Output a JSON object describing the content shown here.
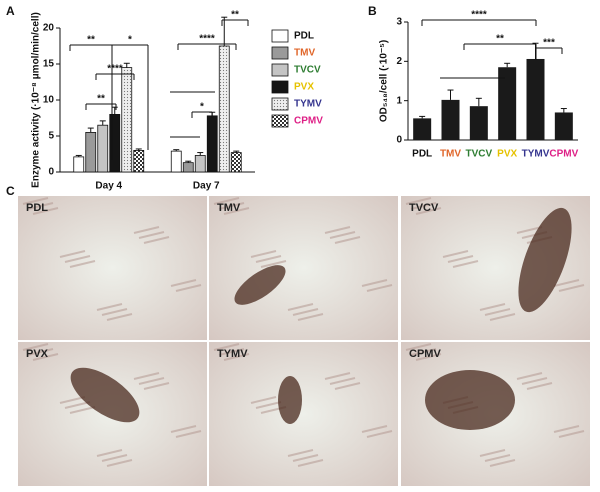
{
  "panel_labels": [
    "A",
    "B",
    "C"
  ],
  "chart_data": [
    {
      "type": "bar",
      "ylabel": "Enzyme activity (·10⁻⁸ μmol/min/cell)",
      "categories": [
        "Day 4",
        "Day 7"
      ],
      "ylim": [
        0,
        20
      ],
      "yticks": [
        0,
        5,
        10,
        15,
        20
      ],
      "series": [
        {
          "name": "PDL",
          "color": "#ffffff",
          "text_color": "#111111",
          "values": [
            2.1,
            2.9
          ],
          "errors": [
            0.2,
            0.2
          ]
        },
        {
          "name": "TMV",
          "color": "#9a9a9a",
          "text_color": "#e0662a",
          "values": [
            5.5,
            1.3
          ],
          "errors": [
            0.6,
            0.2
          ]
        },
        {
          "name": "TVCV",
          "color": "#c4c4c4",
          "text_color": "#2e7d32",
          "values": [
            6.5,
            2.3
          ],
          "errors": [
            0.6,
            0.4
          ]
        },
        {
          "name": "PVX",
          "color": "#151515",
          "text_color": "#e6c200",
          "values": [
            8.0,
            7.8
          ],
          "errors": [
            1.0,
            0.5
          ]
        },
        {
          "name": "TYMV",
          "color": "#e2e2e2",
          "text_color": "#35358f",
          "values": [
            14.5,
            17.5
          ],
          "errors": [
            0.6,
            4.0
          ]
        },
        {
          "name": "CPMV",
          "color": "#6a6a6a",
          "text_color": "#de1f86",
          "values": [
            3.0,
            2.7
          ],
          "errors": [
            0.2,
            0.2
          ]
        }
      ],
      "annotations": [
        "**",
        "*",
        "****",
        "**",
        "**",
        "****",
        "*"
      ]
    },
    {
      "type": "bar",
      "ylabel": "OD₅₄₈/cell (·10⁻⁵)",
      "categories": [
        "PDL",
        "TMV",
        "TVCV",
        "PVX",
        "TYMV",
        "CPMV"
      ],
      "category_colors": [
        "#111111",
        "#e0662a",
        "#2e7d32",
        "#e6c200",
        "#35358f",
        "#de1f86"
      ],
      "values": [
        0.55,
        1.02,
        0.86,
        1.85,
        2.06,
        0.7
      ],
      "errors": [
        0.05,
        0.25,
        0.2,
        0.1,
        0.4,
        0.1
      ],
      "color": "#1a1a1a",
      "ylim": [
        0,
        3
      ],
      "yticks": [
        0,
        1,
        2,
        3
      ],
      "annotations": [
        "****",
        "**",
        "***"
      ]
    }
  ],
  "micrographs": {
    "labels": [
      "PDL",
      "TMV",
      "TVCV",
      "PVX",
      "TYMV",
      "CPMV"
    ]
  }
}
